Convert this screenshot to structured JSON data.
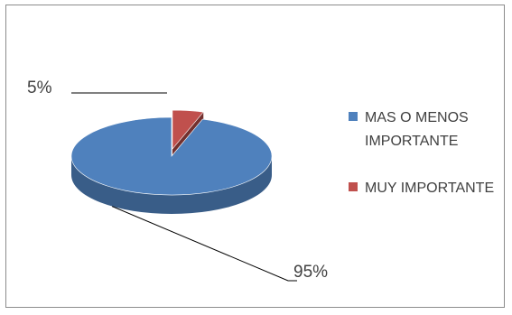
{
  "chart_data": {
    "type": "pie",
    "style": "3d",
    "slices": [
      {
        "label": "MAS O MENOS IMPORTANTE",
        "value": 95,
        "data_label": "95%",
        "color": "#4f81bd"
      },
      {
        "label": "MUY IMPORTANTE",
        "value": 5,
        "data_label": "5%",
        "color": "#c0504d"
      }
    ],
    "legend": {
      "position": "right"
    }
  }
}
